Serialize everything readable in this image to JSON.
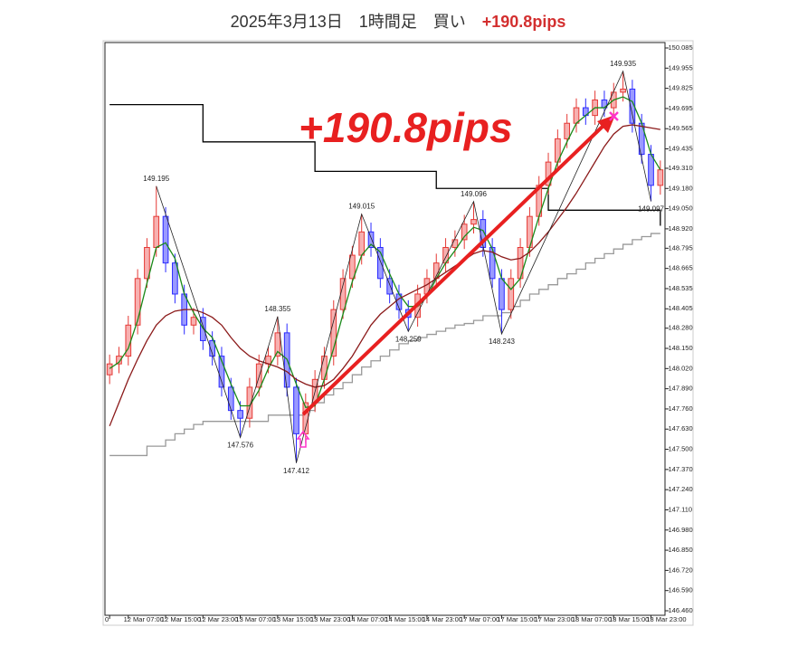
{
  "chart_data": {
    "type": "candlestick",
    "title": "2025年3月13日　1時間足　買い　",
    "title_highlight": "+190.8pips",
    "annotation": "+190.8pips",
    "categories": [
      "0",
      null,
      "12 Mar 07:00",
      null,
      null,
      null,
      "12 Mar 15:00",
      null,
      null,
      null,
      "12 Mar 23:00",
      null,
      null,
      null,
      "13 Mar 07:00",
      null,
      null,
      null,
      "13 Mar 15:00",
      null,
      null,
      null,
      "13 Mar 23:00",
      null,
      null,
      null,
      "14 Mar 07:00",
      null,
      null,
      null,
      "14 Mar 15:00",
      null,
      null,
      null,
      "14 Mar 23:00",
      null,
      null,
      null,
      "17 Mar 07:00",
      null,
      null,
      null,
      "17 Mar 15:00",
      null,
      null,
      null,
      "17 Mar 23:00",
      null,
      null,
      null,
      "18 Mar 07:00",
      null,
      null,
      null,
      "18 Mar 15:00",
      null,
      null,
      null,
      "18 Mar 23:00",
      null
    ],
    "open": [
      147.98,
      148.05,
      148.1,
      148.3,
      148.6,
      148.8,
      149.0,
      148.7,
      148.5,
      148.3,
      148.35,
      148.2,
      148.1,
      147.9,
      147.75,
      147.7,
      147.9,
      148.05,
      148.1,
      148.25,
      147.9,
      147.6,
      147.8,
      147.95,
      148.1,
      148.4,
      148.6,
      148.75,
      148.9,
      148.8,
      148.6,
      148.5,
      148.4,
      148.35,
      148.5,
      148.6,
      148.7,
      148.8,
      148.85,
      148.95,
      148.98,
      148.8,
      148.6,
      148.4,
      148.6,
      148.8,
      149.0,
      149.2,
      149.35,
      149.5,
      149.6,
      149.7,
      149.65,
      149.75,
      149.7,
      149.8,
      149.82,
      149.6,
      149.4,
      149.2
    ],
    "high": [
      148.11,
      148.16,
      148.36,
      148.66,
      148.86,
      149.195,
      149.06,
      148.76,
      148.56,
      148.41,
      148.41,
      148.26,
      148.16,
      147.96,
      147.81,
      147.96,
      148.11,
      148.16,
      148.355,
      148.31,
      147.96,
      147.86,
      148.01,
      148.16,
      148.46,
      148.66,
      148.81,
      149.015,
      148.96,
      148.86,
      148.66,
      148.56,
      148.46,
      148.56,
      148.66,
      148.76,
      148.86,
      148.91,
      149.01,
      149.096,
      149.04,
      148.86,
      148.66,
      148.66,
      148.86,
      149.06,
      149.26,
      149.41,
      149.56,
      149.66,
      149.76,
      149.76,
      149.81,
      149.81,
      149.86,
      149.935,
      149.88,
      149.66,
      149.46,
      149.36
    ],
    "low": [
      147.92,
      147.99,
      148.04,
      148.24,
      148.54,
      148.74,
      148.64,
      148.44,
      148.24,
      148.24,
      148.14,
      148.04,
      147.84,
      147.69,
      147.576,
      147.64,
      147.84,
      147.99,
      148.04,
      147.84,
      147.412,
      147.54,
      147.74,
      147.89,
      148.04,
      148.34,
      148.54,
      148.69,
      148.74,
      148.54,
      148.44,
      148.34,
      148.259,
      148.29,
      148.44,
      148.54,
      148.64,
      148.74,
      148.79,
      148.89,
      148.74,
      148.54,
      148.243,
      148.34,
      148.54,
      148.74,
      148.94,
      149.14,
      149.29,
      149.44,
      149.54,
      149.59,
      149.59,
      149.64,
      149.64,
      149.74,
      149.54,
      149.34,
      149.097,
      149.14
    ],
    "close": [
      148.05,
      148.1,
      148.3,
      148.6,
      148.8,
      149.0,
      148.7,
      148.5,
      148.3,
      148.35,
      148.2,
      148.1,
      147.9,
      147.75,
      147.7,
      147.9,
      148.05,
      148.1,
      148.25,
      147.9,
      147.6,
      147.8,
      147.95,
      148.1,
      148.4,
      148.6,
      148.75,
      148.9,
      148.8,
      148.6,
      148.5,
      148.4,
      148.35,
      148.5,
      148.6,
      148.7,
      148.8,
      148.85,
      148.95,
      148.98,
      148.8,
      148.6,
      148.4,
      148.6,
      148.8,
      149.0,
      149.2,
      149.35,
      149.5,
      149.6,
      149.7,
      149.65,
      149.75,
      149.7,
      149.8,
      149.82,
      149.6,
      149.4,
      149.2,
      149.3
    ],
    "up_color": "#e53935",
    "down_color": "#2a2aff",
    "series": [
      {
        "color": "#1a8a1a",
        "values": [
          148.02,
          148.06,
          148.15,
          148.33,
          148.57,
          148.8,
          148.83,
          148.73,
          148.5,
          148.38,
          148.28,
          148.22,
          148.07,
          147.92,
          147.78,
          147.78,
          147.88,
          148.02,
          148.13,
          148.08,
          147.92,
          147.77,
          147.78,
          147.95,
          148.15,
          148.37,
          148.58,
          148.75,
          148.82,
          148.77,
          148.63,
          148.5,
          148.42,
          148.42,
          148.48,
          148.6,
          148.7,
          148.78,
          148.87,
          148.93,
          148.91,
          148.79,
          148.6,
          148.53,
          148.6,
          148.8,
          149.0,
          149.18,
          149.35,
          149.48,
          149.6,
          149.65,
          149.7,
          149.7,
          149.75,
          149.77,
          149.74,
          149.6,
          149.4,
          149.3
        ]
      },
      {
        "color": "#8b1a1a",
        "values": [
          147.65,
          147.8,
          147.95,
          148.08,
          148.2,
          148.3,
          148.36,
          148.39,
          148.4,
          148.4,
          148.38,
          148.35,
          148.3,
          148.22,
          148.15,
          148.1,
          148.07,
          148.05,
          148.03,
          148.0,
          147.95,
          147.92,
          147.9,
          147.91,
          147.95,
          148.02,
          148.1,
          148.2,
          148.3,
          148.37,
          148.42,
          148.47,
          148.5,
          148.53,
          148.56,
          148.6,
          148.64,
          148.68,
          148.72,
          148.76,
          148.78,
          148.77,
          148.74,
          148.72,
          148.73,
          148.77,
          148.83,
          148.9,
          148.98,
          149.06,
          149.15,
          149.25,
          149.35,
          149.45,
          149.53,
          149.58,
          149.59,
          149.58,
          149.57,
          149.56
        ]
      },
      {
        "color": "#000000",
        "step": true,
        "values": [
          149.72,
          149.72,
          149.72,
          149.72,
          149.72,
          149.72,
          149.72,
          149.72,
          149.72,
          149.72,
          149.48,
          149.48,
          149.48,
          149.48,
          149.48,
          149.48,
          149.48,
          149.48,
          149.48,
          149.48,
          149.48,
          149.48,
          149.29,
          149.29,
          149.29,
          149.29,
          149.29,
          149.29,
          149.29,
          149.29,
          149.29,
          149.29,
          149.29,
          149.29,
          149.29,
          149.18,
          149.18,
          149.18,
          149.18,
          149.18,
          149.18,
          149.18,
          149.18,
          149.18,
          149.18,
          149.18,
          149.18,
          149.04,
          149.04,
          149.04,
          149.04,
          149.04,
          149.04,
          149.04,
          149.04,
          149.04,
          149.04,
          149.04,
          149.04,
          148.94
        ]
      },
      {
        "color": "#999999",
        "step": true,
        "values": [
          147.46,
          147.46,
          147.46,
          147.46,
          147.52,
          147.52,
          147.56,
          147.6,
          147.63,
          147.66,
          147.68,
          147.68,
          147.68,
          147.68,
          147.68,
          147.68,
          147.68,
          147.72,
          147.72,
          147.72,
          147.72,
          147.75,
          147.8,
          147.85,
          147.89,
          147.93,
          147.98,
          148.03,
          148.07,
          148.1,
          148.14,
          148.18,
          148.2,
          148.22,
          148.24,
          148.26,
          148.28,
          148.3,
          148.31,
          148.33,
          148.36,
          148.36,
          148.38,
          148.42,
          148.46,
          148.5,
          148.53,
          148.56,
          148.6,
          148.63,
          148.66,
          148.7,
          148.73,
          148.76,
          148.79,
          148.82,
          148.85,
          148.87,
          148.89,
          148.89
        ]
      }
    ],
    "zigzag": {
      "color": "#222222",
      "x": [
        5,
        14,
        18,
        20,
        27,
        32,
        39,
        42,
        55,
        58
      ],
      "values": [
        149.195,
        147.576,
        148.355,
        147.412,
        149.015,
        148.259,
        149.096,
        148.243,
        149.935,
        149.097
      ]
    },
    "ylim": [
      146.46,
      150.085
    ],
    "yticks": [
      150.085,
      149.955,
      149.825,
      149.695,
      149.565,
      149.435,
      {
        "value": 149.31,
        "label": "149.310"
      },
      {
        "value": 149.18,
        "label": "149.180"
      },
      {
        "value": 149.05,
        "label": "149.050"
      },
      {
        "value": 148.92,
        "label": "148.920"
      },
      148.795,
      148.665,
      148.535,
      148.405,
      {
        "value": 148.28,
        "label": "148.280"
      },
      {
        "value": 148.15,
        "label": "148.150"
      },
      {
        "value": 148.02,
        "label": "148.020"
      },
      {
        "value": 147.89,
        "label": "147.890"
      },
      {
        "value": 147.76,
        "label": "147.760"
      },
      {
        "value": 147.63,
        "label": "147.630"
      },
      {
        "value": 147.5,
        "label": "147.500"
      },
      {
        "value": 147.37,
        "label": "147.370"
      },
      {
        "value": 147.24,
        "label": "147.240"
      },
      {
        "value": 147.11,
        "label": "147.110"
      },
      {
        "value": 146.98,
        "label": "146.980"
      },
      {
        "value": 146.85,
        "label": "146.850"
      },
      {
        "value": 146.72,
        "label": "146.720"
      },
      {
        "value": 146.59,
        "label": "146.590"
      },
      {
        "value": 146.46,
        "label": "146.460"
      }
    ]
  }
}
